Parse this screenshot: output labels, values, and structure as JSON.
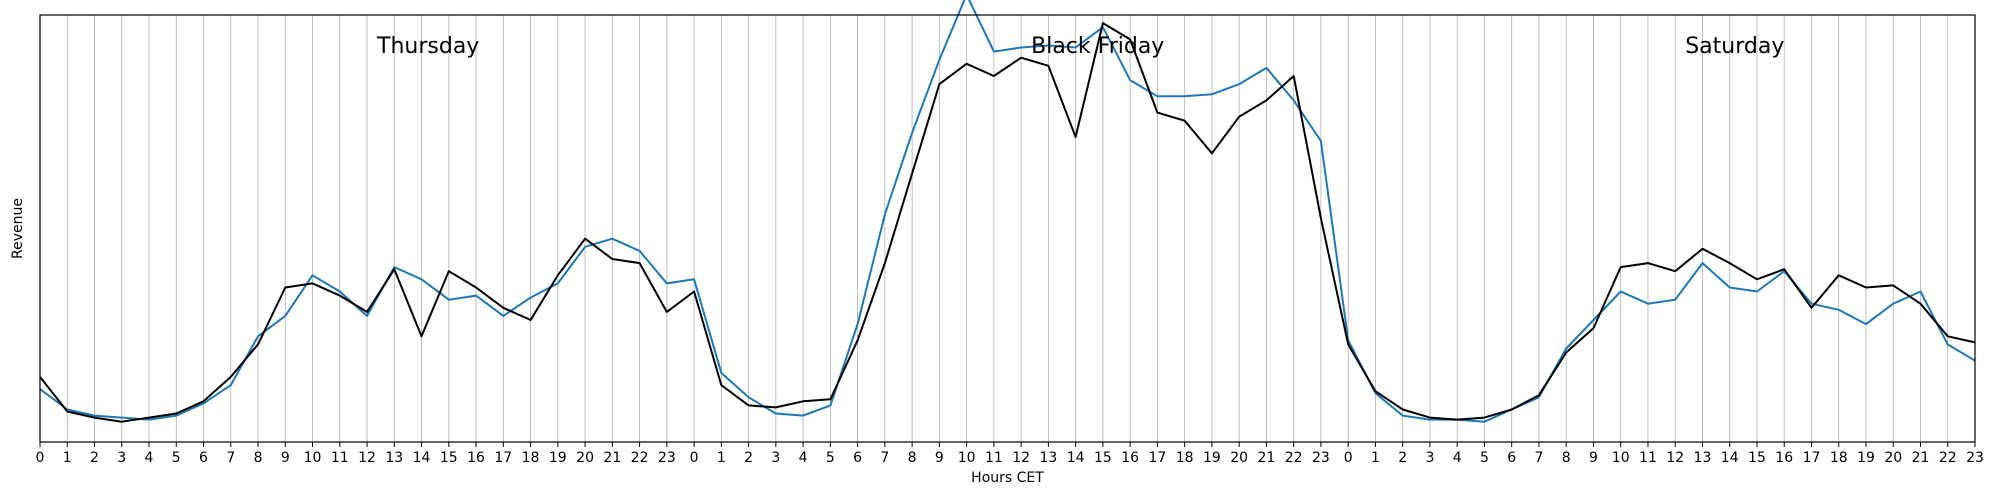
{
  "chart_data": {
    "type": "line",
    "xlabel": "Hours CET",
    "ylabel": "Revenue",
    "grid": "vertical",
    "x_tick_labels": [
      "0",
      "1",
      "2",
      "3",
      "4",
      "5",
      "6",
      "7",
      "8",
      "9",
      "10",
      "11",
      "12",
      "13",
      "14",
      "15",
      "16",
      "17",
      "18",
      "19",
      "20",
      "21",
      "22",
      "23",
      "0",
      "1",
      "2",
      "3",
      "4",
      "5",
      "6",
      "7",
      "8",
      "9",
      "10",
      "11",
      "12",
      "13",
      "14",
      "15",
      "16",
      "17",
      "18",
      "19",
      "20",
      "21",
      "22",
      "23",
      "0",
      "1",
      "2",
      "3",
      "4",
      "5",
      "6",
      "7",
      "8",
      "9",
      "10",
      "11",
      "12",
      "13",
      "14",
      "15",
      "16",
      "17",
      "18",
      "19",
      "20",
      "21",
      "22",
      "23"
    ],
    "annotations": [
      {
        "text": "Thursday",
        "x_index": 12
      },
      {
        "text": "Black Friday",
        "x_index": 36
      },
      {
        "text": "Saturday",
        "x_index": 60
      }
    ],
    "series": [
      {
        "color": "#1f77b4",
        "values": [
          0.13,
          0.08,
          0.065,
          0.06,
          0.055,
          0.065,
          0.095,
          0.14,
          0.26,
          0.31,
          0.41,
          0.37,
          0.31,
          0.43,
          0.4,
          0.35,
          0.36,
          0.31,
          0.355,
          0.39,
          0.48,
          0.5,
          0.47,
          0.39,
          0.4,
          0.17,
          0.11,
          0.07,
          0.065,
          0.09,
          0.29,
          0.56,
          0.76,
          0.94,
          1.1,
          0.96,
          0.97,
          0.975,
          0.97,
          1.02,
          0.89,
          0.85,
          0.85,
          0.855,
          0.88,
          0.92,
          0.84,
          0.74,
          0.25,
          0.12,
          0.065,
          0.055,
          0.055,
          0.05,
          0.08,
          0.11,
          0.23,
          0.3,
          0.37,
          0.34,
          0.35,
          0.44,
          0.38,
          0.37,
          0.42,
          0.34,
          0.325,
          0.29,
          0.34,
          0.37,
          0.24,
          0.2
        ]
      },
      {
        "color": "#000000",
        "values": [
          0.16,
          0.075,
          0.06,
          0.05,
          0.06,
          0.07,
          0.1,
          0.16,
          0.24,
          0.38,
          0.39,
          0.36,
          0.32,
          0.425,
          0.26,
          0.42,
          0.38,
          0.33,
          0.3,
          0.41,
          0.5,
          0.45,
          0.44,
          0.32,
          0.37,
          0.14,
          0.09,
          0.085,
          0.1,
          0.105,
          0.25,
          0.44,
          0.66,
          0.88,
          0.93,
          0.9,
          0.945,
          0.925,
          0.75,
          1.03,
          0.99,
          0.81,
          0.79,
          0.71,
          0.8,
          0.84,
          0.9,
          0.55,
          0.24,
          0.125,
          0.08,
          0.06,
          0.055,
          0.06,
          0.08,
          0.115,
          0.22,
          0.28,
          0.43,
          0.44,
          0.42,
          0.475,
          0.44,
          0.4,
          0.425,
          0.33,
          0.41,
          0.38,
          0.385,
          0.34,
          0.26,
          0.245
        ]
      }
    ]
  }
}
